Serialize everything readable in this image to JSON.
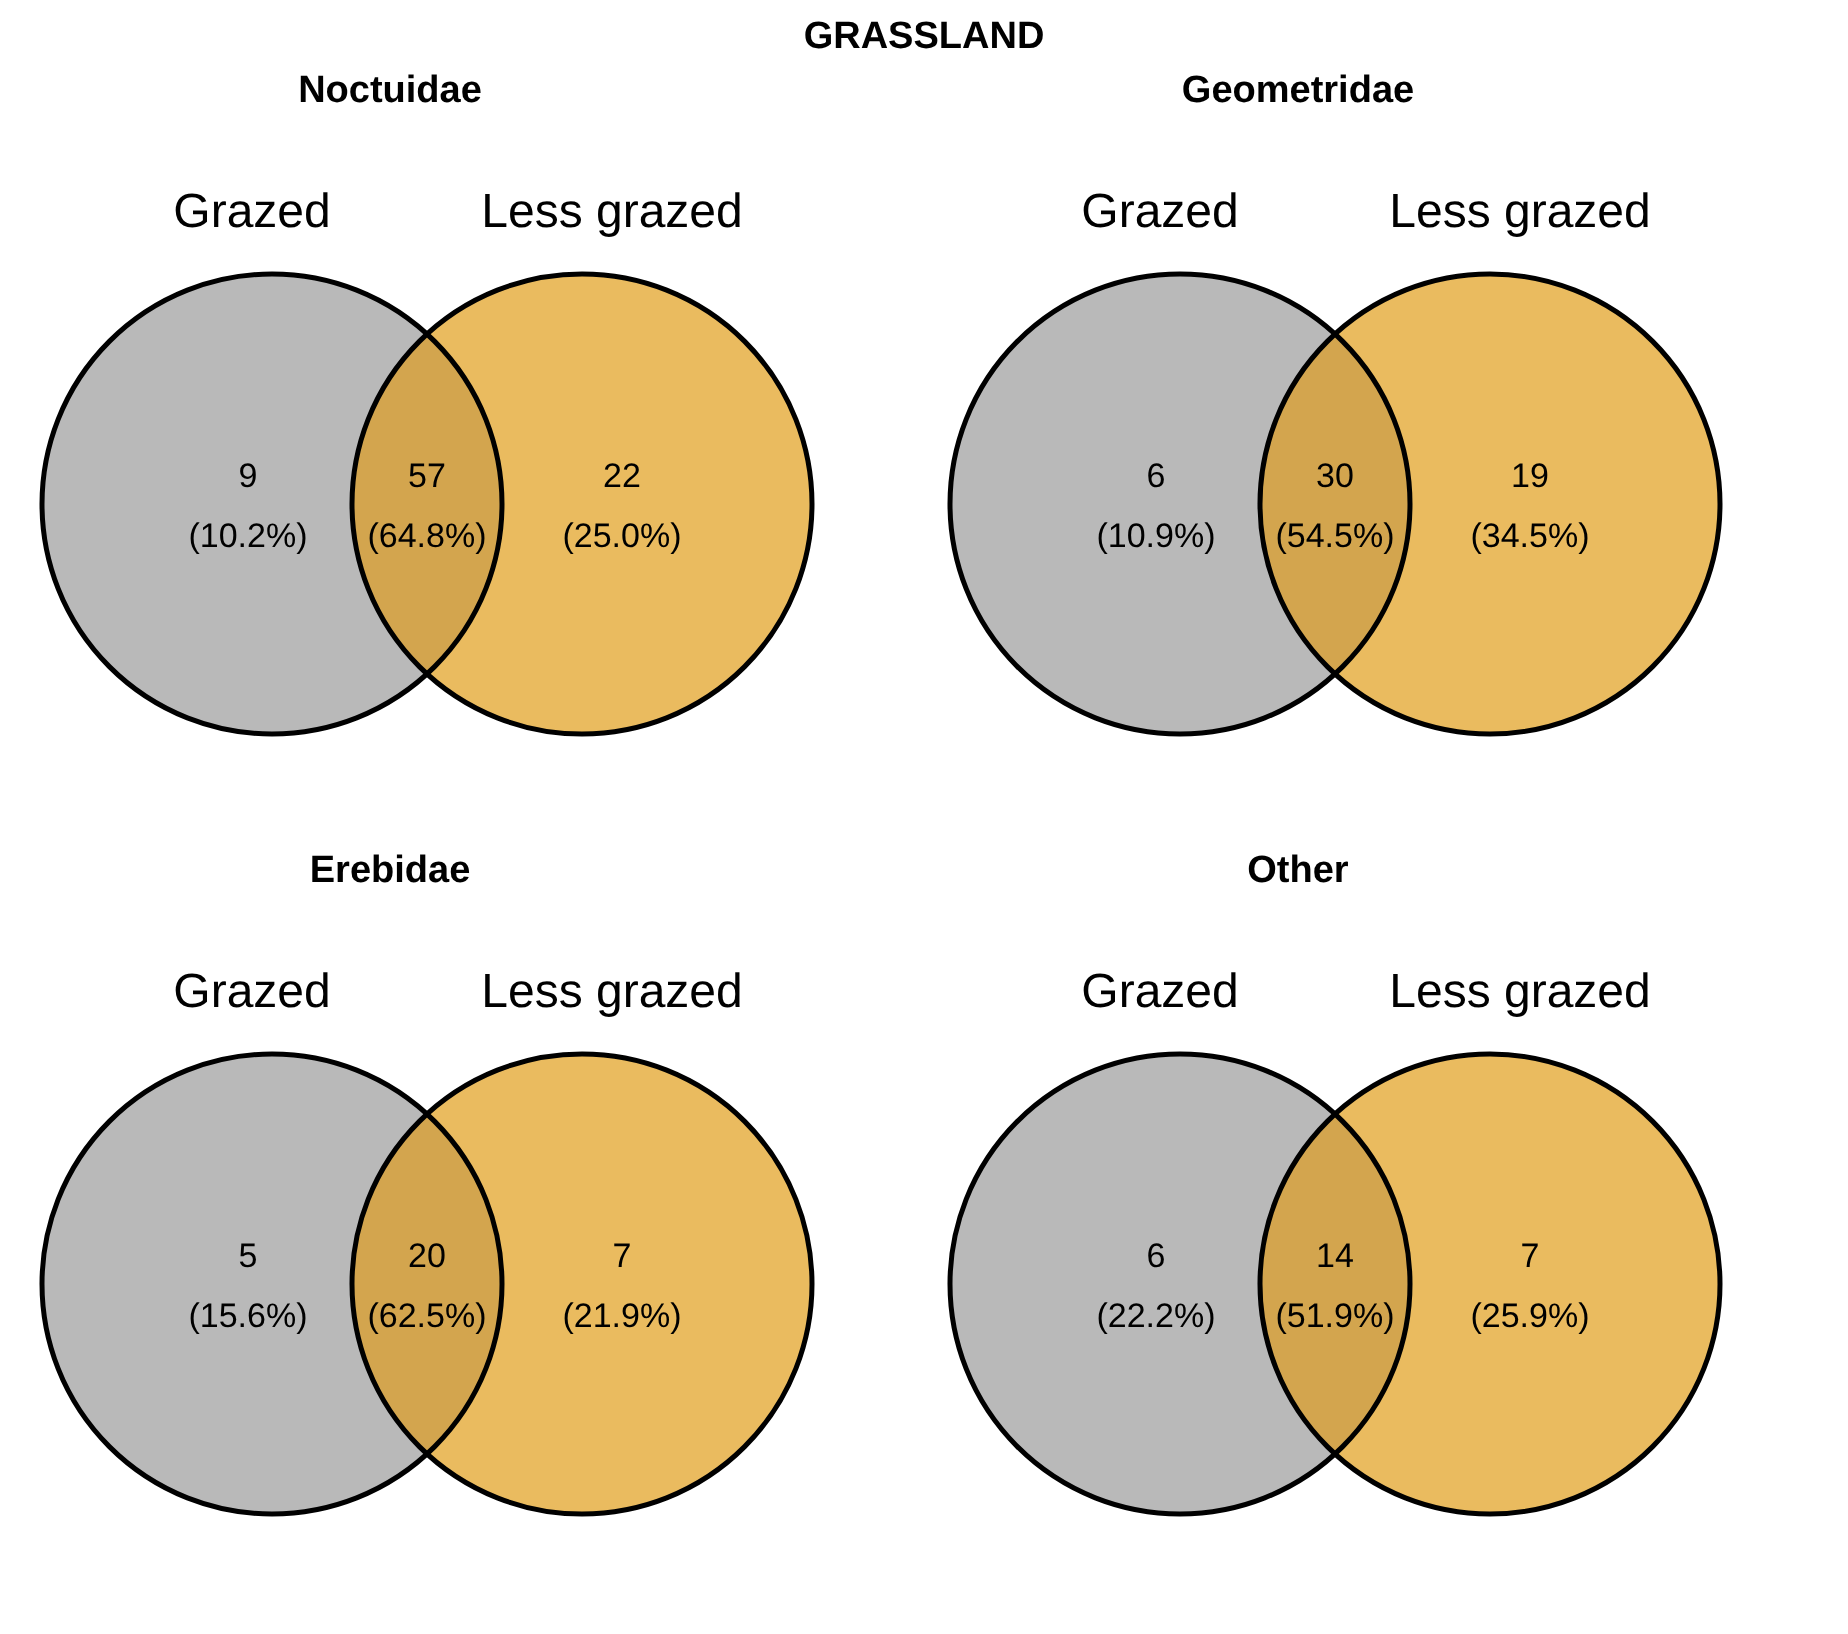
{
  "chart_data": [
    {
      "type": "other",
      "title": "GRASSLAND",
      "subtitle": "Noctuidae",
      "categories": [
        "Grazed",
        null,
        "Less grazed"
      ],
      "colors": [
        "#b9b9b9",
        "#d3a54e",
        "#eabb5f"
      ],
      "values": [
        9,
        57,
        22
      ],
      "data_labels": true,
      "annotations": [
        "(10.2%)",
        "(64.8%)",
        "(25.0%)"
      ]
    },
    {
      "type": "other",
      "title": "Geometridae",
      "categories": [
        "Grazed",
        null,
        "Less grazed"
      ],
      "colors": [
        "#b9b9b9",
        "#d3a54e",
        "#eabb5f"
      ],
      "values": [
        6,
        30,
        19
      ],
      "data_labels": true,
      "annotations": [
        "(10.9%)",
        "(54.5%)",
        "(34.5%)"
      ]
    },
    {
      "type": "other",
      "title": "Erebidae",
      "categories": [
        "Grazed",
        null,
        "Less grazed"
      ],
      "colors": [
        "#b9b9b9",
        "#d3a54e",
        "#eabb5f"
      ],
      "values": [
        5,
        20,
        7
      ],
      "data_labels": true,
      "annotations": [
        "(15.6%)",
        "(62.5%)",
        "(21.9%)"
      ]
    },
    {
      "type": "other",
      "title": "Other",
      "categories": [
        "Grazed",
        null,
        "Less grazed"
      ],
      "colors": [
        "#b9b9b9",
        "#d3a54e",
        "#eabb5f"
      ],
      "values": [
        6,
        14,
        7
      ],
      "data_labels": true,
      "annotations": [
        "(22.2%)",
        "(51.9%)",
        "(25.9%)"
      ]
    }
  ]
}
